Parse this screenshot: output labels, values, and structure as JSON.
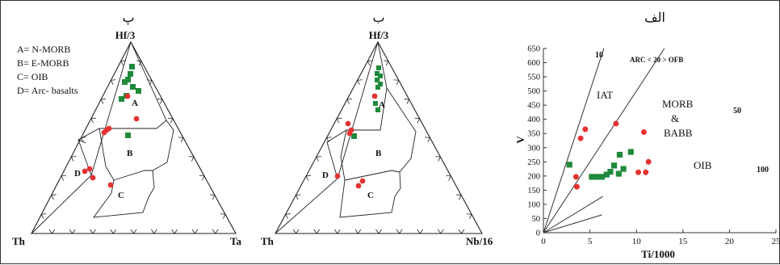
{
  "figure": {
    "panels": [
      {
        "id": "pa",
        "title": "پ",
        "apex_top": "Hf/3",
        "apex_left": "Th",
        "apex_right": "Ta",
        "legend": [
          "A= N-MORB",
          "B= E-MORB",
          "C= OIB",
          "D= Arc- basalts"
        ],
        "field_labels": {
          "A": "A",
          "B": "B",
          "C": "C",
          "D": "D"
        },
        "marker_colors": {
          "circle": "#e53232",
          "square": "#1f8a3b"
        }
      },
      {
        "id": "pb",
        "title": "ب",
        "apex_top": "Hf/3",
        "apex_left": "Th",
        "apex_right": "Nb/16",
        "field_labels": {
          "A": "A",
          "B": "B",
          "C": "C",
          "D": "D"
        },
        "marker_colors": {
          "circle": "#e53232",
          "square": "#1f8a3b"
        }
      }
    ]
  },
  "chart_data": [
    {
      "type": "scatter",
      "title": "الف",
      "xlabel": "Ti/1000",
      "ylabel": "V",
      "xlim": [
        0,
        25
      ],
      "ylim": [
        0,
        650
      ],
      "xticks": [
        0,
        5,
        10,
        15,
        20,
        25
      ],
      "yticks": [
        0,
        50,
        100,
        150,
        200,
        250,
        300,
        350,
        400,
        450,
        500,
        550,
        600,
        650
      ],
      "grid": false,
      "ratio_lines": [
        {
          "label": "10",
          "slope": 10
        },
        {
          "label": "ARC < 20 > OFB",
          "slope": 20
        },
        {
          "label": "50",
          "slope": 50
        },
        {
          "label": "100",
          "slope": 100
        }
      ],
      "field_labels": [
        "IAT",
        "MORB",
        "&",
        "BABB",
        "OIB"
      ],
      "series": [
        {
          "marker": "circle",
          "color": "#e53232",
          "points": [
            [
              4.5,
              365
            ],
            [
              4.0,
              333
            ],
            [
              7.8,
              385
            ],
            [
              10.8,
              355
            ],
            [
              3.5,
              197
            ],
            [
              3.6,
              162
            ],
            [
              10.2,
              213
            ],
            [
              11.0,
              213
            ],
            [
              11.3,
              250
            ]
          ]
        },
        {
          "marker": "square",
          "color": "#1f8a3b",
          "points": [
            [
              2.8,
              240
            ],
            [
              5.2,
              197
            ],
            [
              5.8,
              197
            ],
            [
              6.3,
              197
            ],
            [
              6.8,
              205
            ],
            [
              7.2,
              215
            ],
            [
              7.6,
              237
            ],
            [
              8.1,
              208
            ],
            [
              8.6,
              225
            ],
            [
              8.2,
              275
            ],
            [
              9.4,
              285
            ]
          ]
        }
      ]
    }
  ]
}
